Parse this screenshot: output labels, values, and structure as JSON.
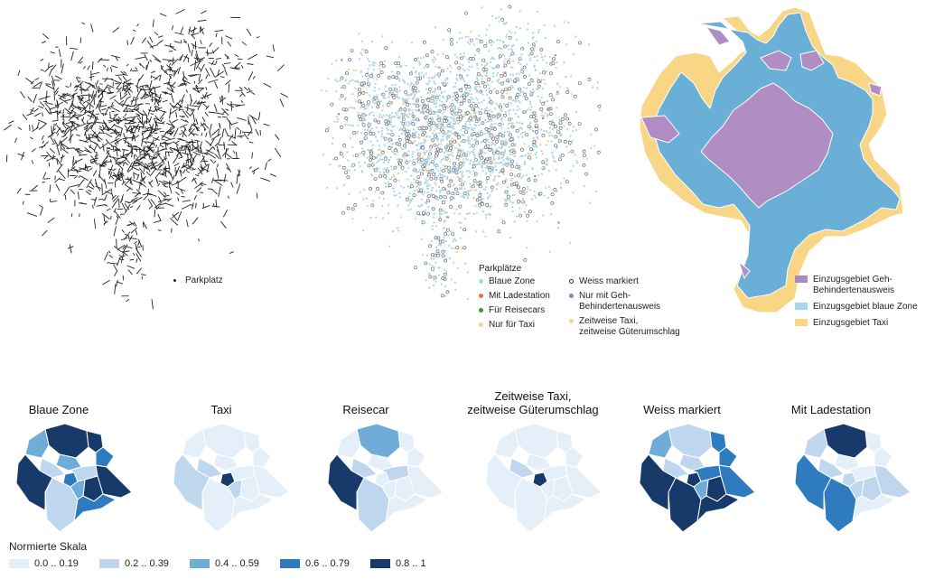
{
  "panel1": {
    "legend_label": "Parkplatz"
  },
  "panel2": {
    "legend_title": "Parkplätze",
    "items_left": [
      {
        "label": "Blaue Zone",
        "color": "#a8d4ea"
      },
      {
        "label": "Mit Ladestation",
        "color": "#e8743b"
      },
      {
        "label": "Für Reisecars",
        "color": "#3a9a3a"
      },
      {
        "label": "Nur für Taxi",
        "color": "#f7d58c"
      }
    ],
    "items_right": [
      {
        "label": "Weiss markiert",
        "type": "ring"
      },
      {
        "label": "Nur mit Geh-Behindertenausweis",
        "color": "#9a7bbf"
      },
      {
        "label": "Zeitweise Taxi, zeitweise Güterumschlag",
        "color": "#f7d58c"
      }
    ],
    "label_nur_geh_1": "Nur mit Geh-",
    "label_nur_geh_2": "Behindertenausweis",
    "label_zeit_1": "Zeitweise Taxi,",
    "label_zeit_2": "zeitweise Güterumschlag"
  },
  "panel3": {
    "items": [
      {
        "label": "Einzugsgebiet Geh-Behindertenausweis",
        "color": "#a98bc4"
      },
      {
        "label": "Einzugsgebiet blaue Zone",
        "color": "#a9d6ea"
      },
      {
        "label": "Einzugsgebiet Taxi",
        "color": "#f9d586"
      }
    ],
    "label_geh_1": "Einzugsgebiet Geh-",
    "label_geh_2": "Behindertenausweis",
    "colors": {
      "purple": "#b08ec4",
      "blue": "#6aafd6",
      "orange": "#f9d586",
      "outline": "#ffffff"
    }
  },
  "small_maps": [
    {
      "title": "Blaue Zone",
      "levels": [
        4,
        4,
        2,
        3,
        2,
        1,
        4,
        3,
        1,
        4,
        4,
        1,
        2,
        3
      ]
    },
    {
      "title": "Taxi",
      "levels": [
        0,
        0,
        0,
        0,
        0,
        1,
        1,
        4,
        0,
        0,
        0,
        0,
        1,
        0
      ]
    },
    {
      "title": "Reisecar",
      "levels": [
        2,
        0,
        0,
        0,
        0,
        1,
        4,
        0,
        1,
        0,
        0,
        1,
        0,
        0
      ]
    },
    {
      "title_line1": "Zeitweise Taxi,",
      "title_line2": "zeitweise Güterumschlag",
      "levels": [
        0,
        0,
        0,
        0,
        0,
        1,
        0,
        4,
        0,
        0,
        0,
        0,
        0,
        0
      ]
    },
    {
      "title": "Weiss markiert",
      "levels": [
        1,
        3,
        2,
        3,
        1,
        1,
        4,
        4,
        3,
        3,
        4,
        4,
        2,
        4
      ]
    },
    {
      "title": "Mit Ladestation",
      "levels": [
        4,
        0,
        1,
        0,
        0,
        1,
        3,
        1,
        0,
        1,
        1,
        3,
        1,
        0
      ]
    }
  ],
  "scale": {
    "title": "Normierte Skala",
    "items": [
      {
        "label": "0.0 .. 0.19",
        "color": "#e4effa"
      },
      {
        "label": "0.2 .. 0.39",
        "color": "#bfd7ee"
      },
      {
        "label": "0.4 .. 0.59",
        "color": "#6fadd8"
      },
      {
        "label": "0.6 .. 0.79",
        "color": "#2f7bbf"
      },
      {
        "label": "0.8 .. 1",
        "color": "#173a6a"
      }
    ]
  }
}
